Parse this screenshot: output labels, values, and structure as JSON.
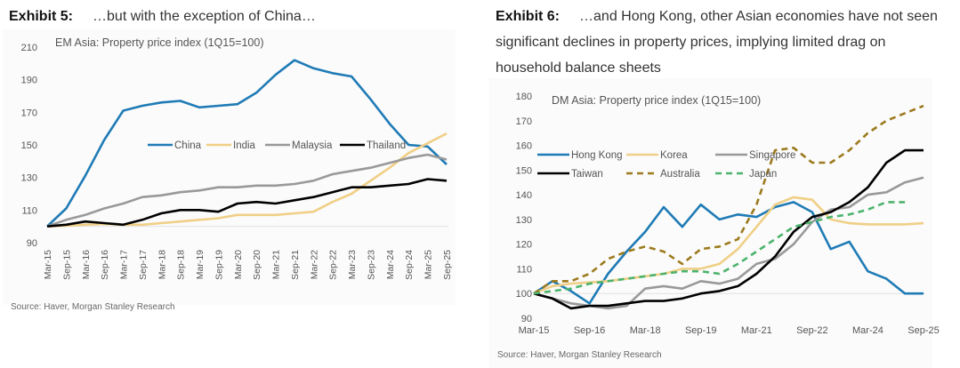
{
  "exhibits": [
    {
      "label": "Exhibit 5:",
      "heading": "…but with the exception of China…",
      "source": "Source: Haver, Morgan Stanley Research"
    },
    {
      "label": "Exhibit 6:",
      "heading": "…and Hong Kong, other Asian economies have not seen significant declines in property prices, implying limited drag on household balance sheets",
      "source": "Source: Haver, Morgan Stanley Research"
    }
  ],
  "chart_data": [
    {
      "type": "line",
      "title": "EM Asia: Property price index (1Q15=100)",
      "x": [
        "Mar-15",
        "Sep-15",
        "Mar-16",
        "Sep-16",
        "Mar-17",
        "Sep-17",
        "Mar-18",
        "Sep-18",
        "Mar-19",
        "Sep-19",
        "Mar-20",
        "Sep-20",
        "Mar-21",
        "Sep-21",
        "Mar-22",
        "Sep-22",
        "Mar-23",
        "Sep-23",
        "Mar-24",
        "Sep-24",
        "Mar-25",
        "Sep-25"
      ],
      "xticks": [
        "Mar-15",
        "Sep-15",
        "Mar-16",
        "Sep-16",
        "Mar-17",
        "Sep-17",
        "Mar-18",
        "Sep-18",
        "Mar-19",
        "Sep-19",
        "Mar-20",
        "Sep-20",
        "Mar-21",
        "Sep-21",
        "Mar-22",
        "Sep-22",
        "Mar-23",
        "Sep-23",
        "Mar-24",
        "Sep-24",
        "Mar-25",
        "Sep-25"
      ],
      "ylim": [
        90,
        210
      ],
      "yticks": [
        90,
        110,
        130,
        150,
        170,
        190,
        210
      ],
      "legend": "center",
      "series": [
        {
          "name": "China",
          "color": "#1f7bb6",
          "dash": false,
          "values": [
            100,
            111,
            131,
            153,
            171,
            174,
            176,
            177,
            173,
            174,
            175,
            182,
            193,
            202,
            197,
            194,
            192,
            178,
            163,
            150,
            149,
            138
          ]
        },
        {
          "name": "India",
          "color": "#f0cf86",
          "dash": false,
          "values": [
            100,
            100.5,
            101,
            101.5,
            101,
            101,
            102,
            103,
            104,
            105,
            107,
            107,
            107,
            108,
            109,
            115,
            120,
            128,
            136,
            145,
            151,
            157
          ]
        },
        {
          "name": "Malaysia",
          "color": "#999999",
          "dash": false,
          "values": [
            100,
            104,
            107,
            111,
            114,
            118,
            119,
            121,
            122,
            124,
            124,
            125,
            125,
            126,
            128,
            132,
            134,
            136,
            139,
            142,
            144,
            141
          ]
        },
        {
          "name": "Thailand",
          "color": "#000000",
          "dash": false,
          "values": [
            100,
            101,
            103,
            102,
            101,
            104,
            108,
            110,
            110,
            109,
            114,
            115,
            114,
            116,
            118,
            121,
            124,
            124,
            125,
            126,
            129,
            128
          ]
        }
      ]
    },
    {
      "type": "line",
      "title": "DM Asia: Property price index (1Q15=100)",
      "x": [
        "Mar-15",
        "Sep-15",
        "Mar-16",
        "Sep-16",
        "Mar-17",
        "Sep-17",
        "Mar-18",
        "Sep-18",
        "Mar-19",
        "Sep-19",
        "Mar-20",
        "Sep-20",
        "Mar-21",
        "Sep-21",
        "Mar-22",
        "Sep-22",
        "Mar-23",
        "Sep-23",
        "Mar-24",
        "Sep-24",
        "Mar-25",
        "Sep-25"
      ],
      "xticks": [
        "Mar-15",
        "Sep-16",
        "Mar-18",
        "Sep-19",
        "Mar-21",
        "Sep-22",
        "Mar-24",
        "Sep-25"
      ],
      "ylim": [
        90,
        180
      ],
      "yticks": [
        90,
        100,
        110,
        120,
        130,
        140,
        150,
        160,
        170,
        180
      ],
      "legend": "top-left",
      "series": [
        {
          "name": "Hong Kong",
          "color": "#1f7bb6",
          "dash": false,
          "values": [
            100,
            105,
            101,
            96,
            108,
            117,
            125,
            135,
            127,
            136,
            130,
            132,
            131,
            135,
            137,
            133,
            118,
            121,
            109,
            106,
            100,
            100
          ]
        },
        {
          "name": "Korea",
          "color": "#f0cf86",
          "dash": false,
          "values": [
            100,
            103,
            104,
            104.5,
            105,
            106,
            107,
            108,
            110,
            110,
            112,
            118,
            127,
            136,
            139,
            138,
            130,
            128.5,
            128,
            128,
            128,
            128.5
          ]
        },
        {
          "name": "Singapore",
          "color": "#999999",
          "dash": false,
          "values": [
            100,
            98,
            96,
            95,
            94,
            95,
            102,
            103,
            102,
            105,
            104,
            106,
            112,
            114,
            120,
            129,
            134,
            135,
            140,
            141,
            145,
            147
          ]
        },
        {
          "name": "Taiwan",
          "color": "#000000",
          "dash": false,
          "values": [
            100,
            98,
            94,
            95,
            95,
            96,
            97,
            97,
            98,
            100,
            101,
            103,
            108,
            115,
            125,
            131,
            133,
            137,
            143,
            153,
            158,
            158
          ]
        },
        {
          "name": "Australia",
          "color": "#9c7a1e",
          "dash": true,
          "values": [
            100,
            105,
            105,
            108,
            114,
            117,
            119,
            117,
            112,
            118,
            119,
            122,
            136,
            158,
            159,
            153,
            153,
            158,
            165,
            170,
            173,
            176
          ]
        },
        {
          "name": "Japan",
          "color": "#4cb36c",
          "dash": true,
          "values": [
            100,
            101,
            102,
            104,
            105,
            106,
            107,
            108,
            109,
            109,
            108,
            112,
            117,
            122,
            127,
            129,
            131,
            132,
            134,
            137,
            137,
            null
          ]
        }
      ]
    }
  ]
}
